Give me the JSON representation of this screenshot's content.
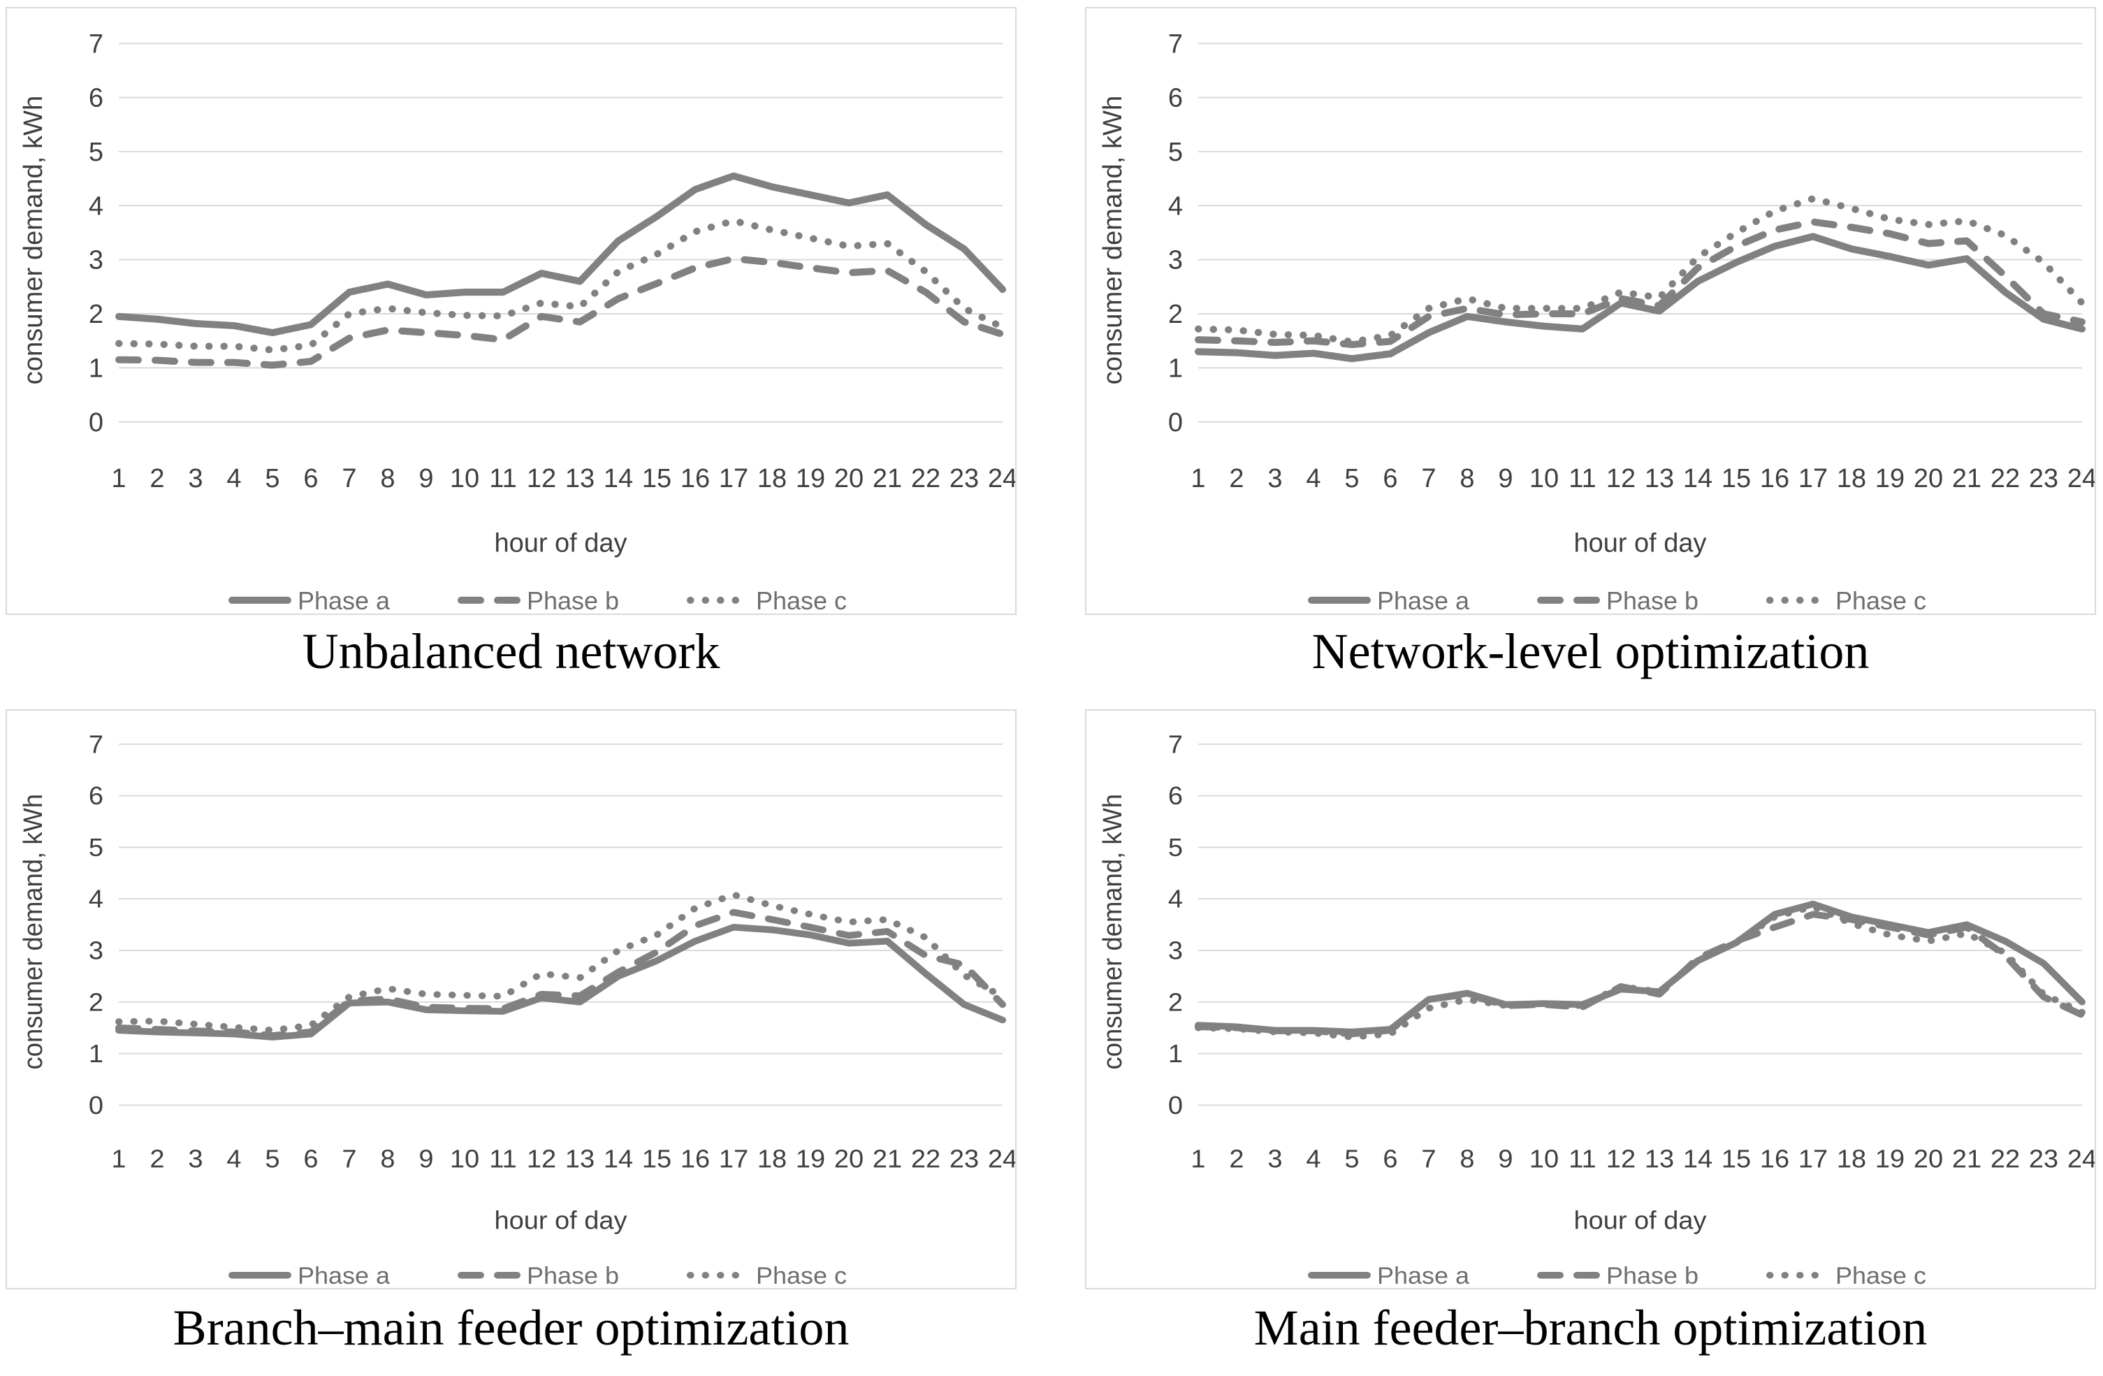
{
  "figure": {
    "panels": [
      {
        "caption": "Unbalanced network"
      },
      {
        "caption": "Network-level optimization"
      },
      {
        "caption": "Branch–main feeder optimization"
      },
      {
        "caption": "Main feeder–branch optimization"
      }
    ]
  },
  "style": {
    "series_color": "#818181",
    "grid_color": "#d9d9d9",
    "tick_color": "#3f3f3f",
    "axis_title_color": "#3f3f3f",
    "legend_text_color": "#6e6e6e",
    "panel_border_color": "#d9d9d9",
    "caption_color": "#000000"
  },
  "chart_data": [
    {
      "type": "line",
      "title": "Unbalanced network",
      "xlabel": "hour of day",
      "ylabel": "consumer demand, kWh",
      "x": [
        1,
        2,
        3,
        4,
        5,
        6,
        7,
        8,
        9,
        10,
        11,
        12,
        13,
        14,
        15,
        16,
        17,
        18,
        19,
        20,
        21,
        22,
        23,
        24
      ],
      "ylim": [
        0,
        7
      ],
      "yticks": [
        0,
        1,
        2,
        3,
        4,
        5,
        6,
        7
      ],
      "grid": true,
      "legend_position": "bottom",
      "series": [
        {
          "name": "Phase a",
          "style": "solid",
          "values": [
            1.95,
            1.9,
            1.82,
            1.78,
            1.65,
            1.8,
            2.4,
            2.55,
            2.35,
            2.4,
            2.4,
            2.75,
            2.6,
            3.35,
            3.8,
            4.3,
            4.55,
            4.35,
            4.2,
            4.05,
            4.2,
            3.65,
            3.2,
            2.45
          ]
        },
        {
          "name": "Phase b",
          "style": "dashed",
          "values": [
            1.15,
            1.14,
            1.1,
            1.1,
            1.05,
            1.12,
            1.55,
            1.7,
            1.65,
            1.6,
            1.52,
            1.95,
            1.85,
            2.28,
            2.56,
            2.85,
            3.02,
            2.95,
            2.85,
            2.76,
            2.8,
            2.4,
            1.85,
            1.62
          ]
        },
        {
          "name": "Phase c",
          "style": "dotted",
          "values": [
            1.45,
            1.44,
            1.4,
            1.4,
            1.33,
            1.42,
            2.0,
            2.1,
            2.02,
            1.97,
            1.96,
            2.2,
            2.13,
            2.78,
            3.1,
            3.52,
            3.72,
            3.55,
            3.4,
            3.25,
            3.3,
            2.78,
            2.1,
            1.75
          ]
        }
      ]
    },
    {
      "type": "line",
      "title": "Network-level optimization",
      "xlabel": "hour of day",
      "ylabel": "consumer demand, kWh",
      "x": [
        1,
        2,
        3,
        4,
        5,
        6,
        7,
        8,
        9,
        10,
        11,
        12,
        13,
        14,
        15,
        16,
        17,
        18,
        19,
        20,
        21,
        22,
        23,
        24
      ],
      "ylim": [
        0,
        7
      ],
      "yticks": [
        0,
        1,
        2,
        3,
        4,
        5,
        6,
        7
      ],
      "grid": true,
      "legend_position": "bottom",
      "series": [
        {
          "name": "Phase a",
          "style": "solid",
          "values": [
            1.3,
            1.28,
            1.23,
            1.27,
            1.17,
            1.26,
            1.65,
            1.95,
            1.85,
            1.77,
            1.72,
            2.2,
            2.05,
            2.6,
            2.95,
            3.25,
            3.43,
            3.2,
            3.06,
            2.9,
            3.02,
            2.4,
            1.9,
            1.72
          ]
        },
        {
          "name": "Phase b",
          "style": "dashed",
          "values": [
            1.52,
            1.5,
            1.47,
            1.5,
            1.43,
            1.49,
            1.95,
            2.1,
            1.98,
            2.0,
            2.0,
            2.28,
            2.15,
            2.85,
            3.25,
            3.55,
            3.7,
            3.6,
            3.48,
            3.3,
            3.35,
            2.7,
            2.0,
            1.85
          ]
        },
        {
          "name": "Phase c",
          "style": "dotted",
          "values": [
            1.72,
            1.7,
            1.62,
            1.6,
            1.48,
            1.6,
            2.1,
            2.28,
            2.1,
            2.1,
            2.1,
            2.4,
            2.3,
            3.05,
            3.5,
            3.9,
            4.13,
            3.95,
            3.75,
            3.65,
            3.72,
            3.45,
            2.95,
            2.2
          ]
        }
      ]
    },
    {
      "type": "line",
      "title": "Branch–main feeder optimization",
      "xlabel": "hour of day",
      "ylabel": "consumer demand, kWh",
      "x": [
        1,
        2,
        3,
        4,
        5,
        6,
        7,
        8,
        9,
        10,
        11,
        12,
        13,
        14,
        15,
        16,
        17,
        18,
        19,
        20,
        21,
        22,
        23,
        24
      ],
      "ylim": [
        0,
        7
      ],
      "yticks": [
        0,
        1,
        2,
        3,
        4,
        5,
        6,
        7
      ],
      "grid": true,
      "legend_position": "bottom",
      "series": [
        {
          "name": "Phase a",
          "style": "solid",
          "values": [
            1.45,
            1.42,
            1.4,
            1.38,
            1.32,
            1.38,
            1.98,
            2.0,
            1.85,
            1.83,
            1.82,
            2.08,
            2.0,
            2.5,
            2.8,
            3.18,
            3.45,
            3.4,
            3.3,
            3.14,
            3.18,
            2.55,
            1.95,
            1.65
          ]
        },
        {
          "name": "Phase b",
          "style": "dashed",
          "values": [
            1.5,
            1.47,
            1.44,
            1.42,
            1.35,
            1.42,
            2.02,
            2.06,
            1.9,
            1.88,
            1.87,
            2.15,
            2.12,
            2.58,
            2.97,
            3.48,
            3.74,
            3.6,
            3.45,
            3.29,
            3.37,
            2.9,
            2.72,
            1.95
          ]
        },
        {
          "name": "Phase c",
          "style": "dotted",
          "values": [
            1.62,
            1.63,
            1.57,
            1.51,
            1.45,
            1.55,
            2.1,
            2.26,
            2.15,
            2.13,
            2.11,
            2.55,
            2.47,
            3.0,
            3.3,
            3.82,
            4.08,
            3.87,
            3.7,
            3.55,
            3.6,
            3.25,
            2.52,
            2.1
          ]
        }
      ]
    },
    {
      "type": "line",
      "title": "Main feeder–branch optimization",
      "xlabel": "hour of day",
      "ylabel": "consumer demand, kWh",
      "x": [
        1,
        2,
        3,
        4,
        5,
        6,
        7,
        8,
        9,
        10,
        11,
        12,
        13,
        14,
        15,
        16,
        17,
        18,
        19,
        20,
        21,
        22,
        23,
        24
      ],
      "ylim": [
        0,
        7
      ],
      "yticks": [
        0,
        1,
        2,
        3,
        4,
        5,
        6,
        7
      ],
      "grid": true,
      "legend_position": "bottom",
      "series": [
        {
          "name": "Phase a",
          "style": "solid",
          "values": [
            1.55,
            1.52,
            1.45,
            1.45,
            1.42,
            1.47,
            2.05,
            2.17,
            1.95,
            1.97,
            1.95,
            2.25,
            2.2,
            2.8,
            3.15,
            3.7,
            3.9,
            3.65,
            3.5,
            3.35,
            3.5,
            3.18,
            2.75,
            2.0
          ]
        },
        {
          "name": "Phase b",
          "style": "dashed",
          "values": [
            1.52,
            1.5,
            1.44,
            1.44,
            1.38,
            1.45,
            2.05,
            2.15,
            1.93,
            1.95,
            1.9,
            2.3,
            2.15,
            2.85,
            3.18,
            3.45,
            3.7,
            3.6,
            3.45,
            3.3,
            3.45,
            2.9,
            2.1,
            1.75
          ]
        },
        {
          "name": "Phase c",
          "style": "dotted",
          "values": [
            1.5,
            1.48,
            1.42,
            1.4,
            1.32,
            1.38,
            1.88,
            2.05,
            1.93,
            1.95,
            1.93,
            2.3,
            2.2,
            2.8,
            3.15,
            3.65,
            3.85,
            3.52,
            3.3,
            3.18,
            3.33,
            2.95,
            2.15,
            1.8
          ]
        }
      ]
    }
  ]
}
